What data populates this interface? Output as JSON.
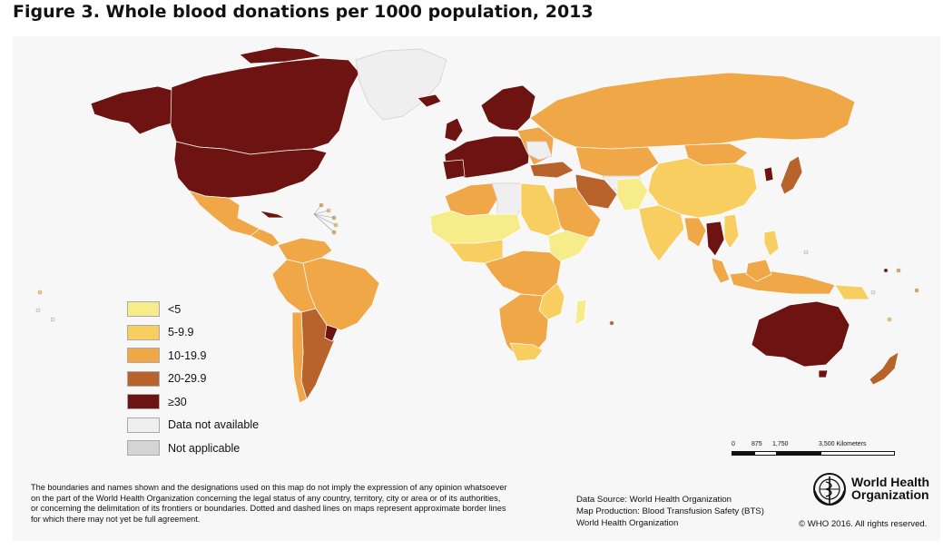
{
  "figure": {
    "title": "Figure 3.   Whole blood donations per 1000 population, 2013"
  },
  "legend": {
    "items": [
      {
        "label": "<5",
        "color": "#f6ec8a"
      },
      {
        "label": "5-9.9",
        "color": "#f7ce5f"
      },
      {
        "label": "10-19.9",
        "color": "#f0a748"
      },
      {
        "label": "20-29.9",
        "color": "#b8632b"
      },
      {
        "label": "≥30",
        "color": "#6d1412"
      },
      {
        "label": "Data not available",
        "color": "#efefef"
      },
      {
        "label": "Not applicable",
        "color": "#d4d4d4"
      }
    ]
  },
  "scale_bar": {
    "labels": [
      "0",
      "875",
      "1,750",
      "3,500 Kilometers"
    ]
  },
  "disclaimer": {
    "lines": [
      "The boundaries and names shown and the designations used on this map do not imply the expression of any opinion whatsoever",
      "on the part of the World Health Organization concerning the legal status of any country, territory, city or area or of its authorities,",
      "or concerning the delimitation of its frontiers or boundaries. Dotted and dashed lines on maps represent approximate border lines",
      "for which there may not yet be full agreement."
    ]
  },
  "sources": {
    "lines": [
      "Data Source: World Health Organization",
      "Map Production: Blood Transfusion Safety (BTS)",
      "World Health Organization"
    ]
  },
  "who": {
    "name_line1": "World Health",
    "name_line2": "Organization",
    "copyright": "© WHO 2016. All rights reserved."
  },
  "colors": {
    "very_low": "#f6ec8a",
    "low": "#f7ce5f",
    "medium": "#f0a748",
    "high": "#b8632b",
    "very_high": "#6d1412",
    "no_data": "#efefef",
    "not_applicable": "#d4d4d4"
  }
}
